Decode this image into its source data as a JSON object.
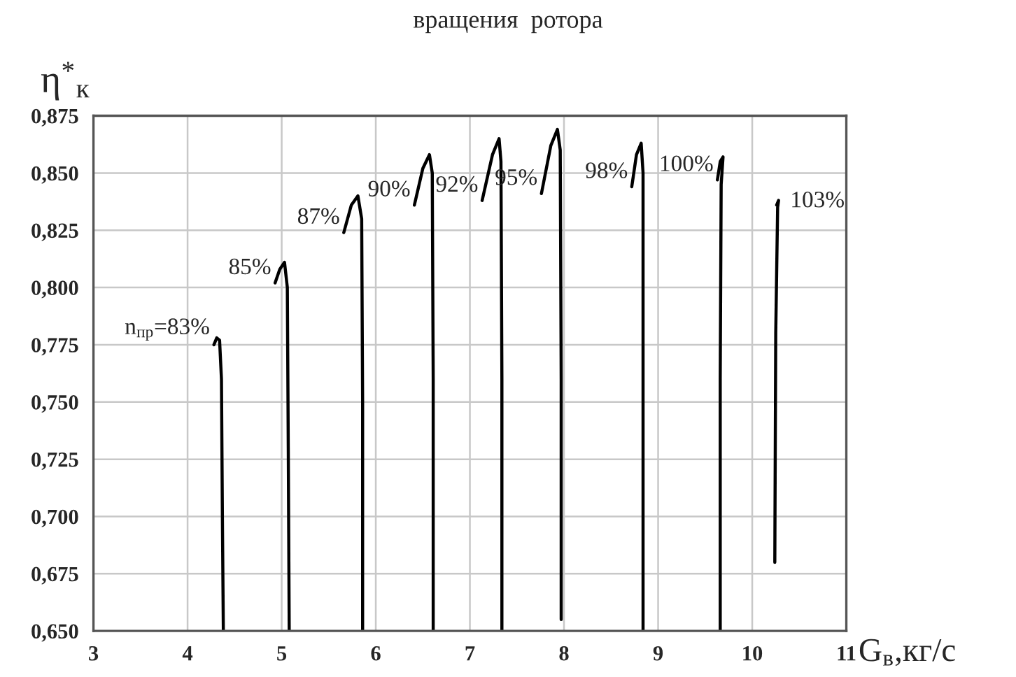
{
  "chart_data": {
    "type": "line",
    "ylabel": "η$^{*}$$_{к}$",
    "xlabel": "G$_{в}$,кг/с",
    "xlim": [
      3,
      11
    ],
    "xticks": [
      3,
      4,
      5,
      6,
      7,
      8,
      9,
      10,
      11
    ],
    "ylim": [
      0.65,
      0.875
    ],
    "yticks": [
      {
        "value": 0.65,
        "label": "0,650"
      },
      {
        "value": 0.675,
        "label": "0,675"
      },
      {
        "value": 0.7,
        "label": "0,700"
      },
      {
        "value": 0.725,
        "label": "0,725"
      },
      {
        "value": 0.75,
        "label": "0,750"
      },
      {
        "value": 0.775,
        "label": "0,775"
      },
      {
        "value": 0.8,
        "label": "0,800"
      },
      {
        "value": 0.825,
        "label": "0,825"
      },
      {
        "value": 0.85,
        "label": "0,850"
      },
      {
        "value": 0.875,
        "label": "0,875"
      }
    ],
    "grid": true,
    "legend": false,
    "marker": "none",
    "line_style": "solid",
    "series": [
      {
        "name": "n$_{пр}$=83%",
        "color": "#000000",
        "x": [
          4.28,
          4.31,
          4.34,
          4.36,
          4.37,
          4.38
        ],
        "values": [
          0.775,
          0.778,
          0.777,
          0.76,
          0.7,
          0.65
        ]
      },
      {
        "name": "85%",
        "color": "#000000",
        "x": [
          4.93,
          4.98,
          5.03,
          5.06,
          5.07,
          5.08
        ],
        "values": [
          0.802,
          0.808,
          0.811,
          0.8,
          0.73,
          0.65
        ]
      },
      {
        "name": "87%",
        "color": "#000000",
        "x": [
          5.66,
          5.74,
          5.81,
          5.85,
          5.86,
          5.86
        ],
        "values": [
          0.824,
          0.836,
          0.84,
          0.83,
          0.75,
          0.65
        ]
      },
      {
        "name": "90%",
        "color": "#000000",
        "x": [
          6.41,
          6.5,
          6.57,
          6.6,
          6.61,
          6.61
        ],
        "values": [
          0.836,
          0.852,
          0.858,
          0.85,
          0.76,
          0.65
        ]
      },
      {
        "name": "92%",
        "color": "#000000",
        "x": [
          7.13,
          7.24,
          7.31,
          7.33,
          7.34,
          7.34
        ],
        "values": [
          0.838,
          0.858,
          0.865,
          0.855,
          0.76,
          0.65
        ]
      },
      {
        "name": "95%",
        "color": "#000000",
        "x": [
          7.76,
          7.86,
          7.93,
          7.96,
          7.97,
          7.97
        ],
        "values": [
          0.841,
          0.862,
          0.869,
          0.86,
          0.76,
          0.655
        ]
      },
      {
        "name": "98%",
        "color": "#000000",
        "x": [
          8.72,
          8.77,
          8.82,
          8.84,
          8.84,
          8.84
        ],
        "values": [
          0.844,
          0.858,
          0.863,
          0.85,
          0.76,
          0.65
        ]
      },
      {
        "name": "100%",
        "color": "#000000",
        "x": [
          9.63,
          9.66,
          9.69,
          9.67,
          9.66,
          9.66
        ],
        "values": [
          0.847,
          0.855,
          0.857,
          0.845,
          0.76,
          0.65
        ]
      },
      {
        "name": "103%",
        "color": "#000000",
        "x": [
          10.26,
          10.28,
          10.27,
          10.25,
          10.24
        ],
        "values": [
          0.836,
          0.838,
          0.835,
          0.78,
          0.68
        ]
      }
    ],
    "annotations": [
      "вращения  ротора"
    ]
  }
}
